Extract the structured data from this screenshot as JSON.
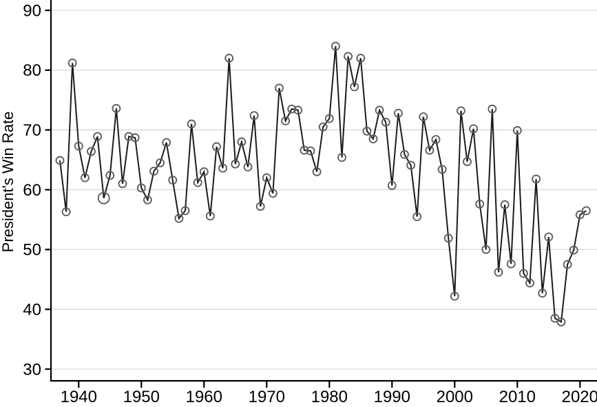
{
  "chart_data": {
    "type": "line",
    "title": "",
    "xlabel": "",
    "ylabel": "President's Win Rate",
    "x_tick_labels": [
      "1940",
      "1950",
      "1960",
      "1970",
      "1980",
      "1990",
      "2000",
      "2010",
      "2020"
    ],
    "y_tick_labels": [
      "30",
      "40",
      "50",
      "60",
      "70",
      "80",
      "90"
    ],
    "xlim": [
      1935.7,
      2022.6
    ],
    "ylim": [
      28.2,
      91.7
    ],
    "grid": "horizontal",
    "legend": "none",
    "marker": "open-circle",
    "line_color": "#1a1a1a",
    "marker_color": "#5f5f5f",
    "grid_color": "#d9d9d9",
    "large_marker_years": [
      1944
    ],
    "series": [
      {
        "name": "President's Win Rate",
        "x": [
          1937,
          1938,
          1939,
          1940,
          1941,
          1942,
          1943,
          1944,
          1945,
          1946,
          1947,
          1948,
          1949,
          1950,
          1951,
          1952,
          1953,
          1954,
          1955,
          1956,
          1957,
          1958,
          1959,
          1960,
          1961,
          1962,
          1963,
          1964,
          1965,
          1966,
          1967,
          1968,
          1969,
          1970,
          1971,
          1972,
          1973,
          1974,
          1975,
          1976,
          1977,
          1978,
          1979,
          1980,
          1981,
          1982,
          1983,
          1984,
          1985,
          1986,
          1987,
          1988,
          1989,
          1990,
          1991,
          1992,
          1993,
          1994,
          1995,
          1996,
          1997,
          1998,
          1999,
          2000,
          2001,
          2002,
          2003,
          2004,
          2005,
          2006,
          2007,
          2008,
          2009,
          2010,
          2011,
          2012,
          2013,
          2014,
          2015,
          2016,
          2017,
          2018,
          2019,
          2020,
          2021
        ],
        "y": [
          64.9,
          56.3,
          81.2,
          67.3,
          62.0,
          66.4,
          68.9,
          58.6,
          62.4,
          73.6,
          61.0,
          68.9,
          68.7,
          60.3,
          58.3,
          63.1,
          64.5,
          67.9,
          61.6,
          55.2,
          56.5,
          71.0,
          61.2,
          63.0,
          55.6,
          67.2,
          63.6,
          82.0,
          64.3,
          68.0,
          63.8,
          72.4,
          57.2,
          62.0,
          59.4,
          77.0,
          71.5,
          73.5,
          73.3,
          66.6,
          66.5,
          63.0,
          70.5,
          71.9,
          84.0,
          65.4,
          82.3,
          77.2,
          82.0,
          69.8,
          68.5,
          73.3,
          71.3,
          60.7,
          72.8,
          65.9,
          64.1,
          55.5,
          72.2,
          66.6,
          68.4,
          63.4,
          51.9,
          42.2,
          73.2,
          64.7,
          70.2,
          57.6,
          50.0,
          73.5,
          46.2,
          57.5,
          47.6,
          69.9,
          46.0,
          44.4,
          61.8,
          42.7,
          52.1,
          38.5,
          37.9,
          47.5,
          49.9,
          55.8,
          56.5
        ]
      }
    ]
  }
}
